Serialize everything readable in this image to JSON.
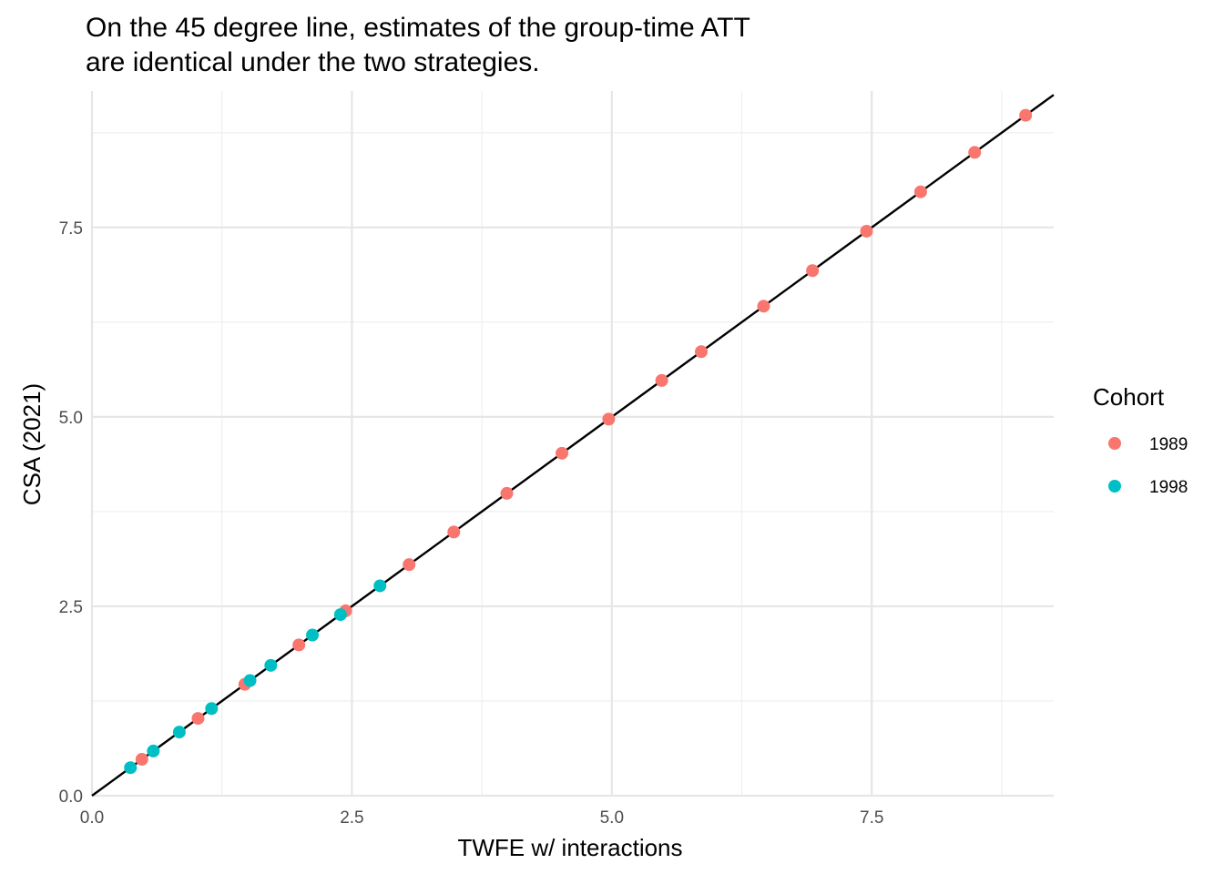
{
  "chart_data": {
    "type": "scatter",
    "title_lines": [
      "On the 45 degree line, estimates of the group-time ATT",
      "are identical under the two strategies."
    ],
    "xlabel": "TWFE w/ interactions",
    "ylabel": "CSA (2021)",
    "xlim": [
      0,
      9.25
    ],
    "ylim": [
      0,
      9.3
    ],
    "x_ticks": [
      0,
      2.5,
      5,
      7.5
    ],
    "x_tick_labels": [
      "0.0",
      "2.5",
      "5.0",
      "7.5"
    ],
    "y_ticks": [
      0,
      2.5,
      5,
      7.5
    ],
    "y_tick_labels": [
      "0.0",
      "2.5",
      "5.0",
      "7.5"
    ],
    "x_minor": [
      1.25,
      3.75,
      6.25,
      8.75
    ],
    "y_minor": [
      1.25,
      3.75,
      6.25,
      8.75
    ],
    "reference_line": {
      "type": "identity",
      "slope": 1,
      "intercept": 0,
      "color": "#000000"
    },
    "grid": true,
    "legend": {
      "title": "Cohort",
      "position": "right"
    },
    "series": [
      {
        "name": "1989",
        "color": "#F8766D",
        "points": [
          [
            0.48,
            0.48
          ],
          [
            1.02,
            1.02
          ],
          [
            1.47,
            1.47
          ],
          [
            1.99,
            1.99
          ],
          [
            2.44,
            2.44
          ],
          [
            3.05,
            3.05
          ],
          [
            3.48,
            3.48
          ],
          [
            3.99,
            3.99
          ],
          [
            4.52,
            4.52
          ],
          [
            4.97,
            4.97
          ],
          [
            5.48,
            5.48
          ],
          [
            5.86,
            5.86
          ],
          [
            6.46,
            6.46
          ],
          [
            6.93,
            6.93
          ],
          [
            7.45,
            7.45
          ],
          [
            7.97,
            7.97
          ],
          [
            8.49,
            8.49
          ],
          [
            8.98,
            8.98
          ]
        ]
      },
      {
        "name": "1998",
        "color": "#00BFC4",
        "points": [
          [
            0.37,
            0.37
          ],
          [
            0.59,
            0.59
          ],
          [
            0.84,
            0.84
          ],
          [
            1.15,
            1.15
          ],
          [
            1.52,
            1.52
          ],
          [
            1.72,
            1.72
          ],
          [
            2.12,
            2.12
          ],
          [
            2.39,
            2.39
          ],
          [
            2.77,
            2.77
          ]
        ]
      }
    ]
  }
}
